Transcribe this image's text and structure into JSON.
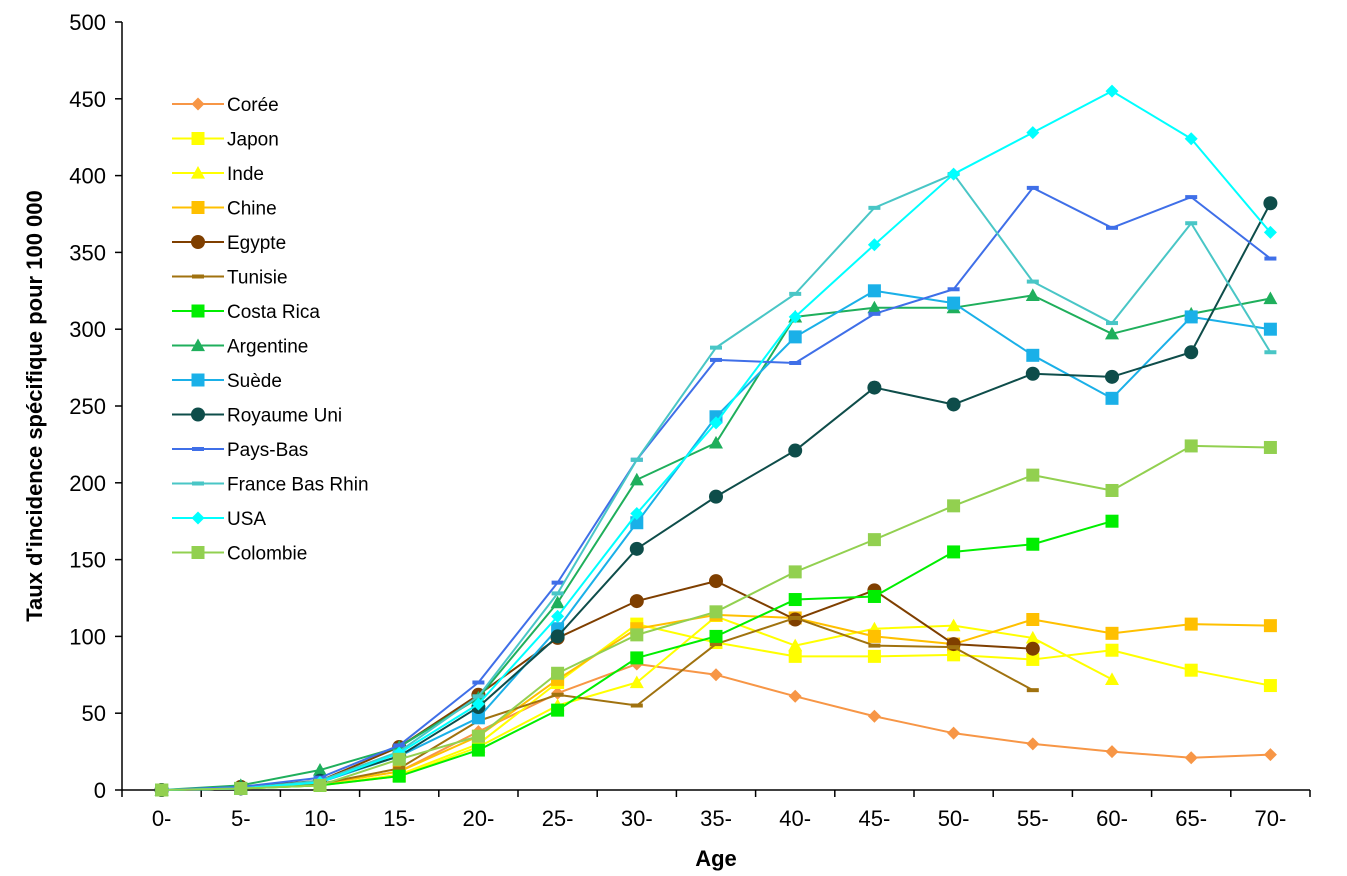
{
  "chart_data": {
    "type": "line",
    "title": "",
    "xlabel": "Age",
    "ylabel": "Taux d'incidence spécifique pour 100 000",
    "ylim": [
      0,
      500
    ],
    "yticks": [
      0,
      50,
      100,
      150,
      200,
      250,
      300,
      350,
      400,
      450,
      500
    ],
    "categories": [
      "0-",
      "5-",
      "10-",
      "15-",
      "20-",
      "25-",
      "30-",
      "35-",
      "40-",
      "45-",
      "50-",
      "55-",
      "60-",
      "65-",
      "70-"
    ],
    "legend_position": "top-left",
    "grid": false,
    "series": [
      {
        "name": "Corée",
        "color": "#F79646",
        "marker": "diamond",
        "values": [
          0,
          1,
          4,
          12,
          38,
          63,
          82,
          75,
          61,
          48,
          37,
          30,
          25,
          21,
          23
        ]
      },
      {
        "name": "Japon",
        "color": "#FFFF00",
        "marker": "square",
        "values": [
          0,
          1,
          3,
          10,
          30,
          70,
          108,
          96,
          87,
          87,
          88,
          85,
          91,
          78,
          68
        ]
      },
      {
        "name": "Inde",
        "color": "#FFFF00",
        "marker": "triangle",
        "values": [
          0,
          1,
          3,
          9,
          28,
          55,
          70,
          113,
          94,
          105,
          107,
          99,
          72,
          null,
          null
        ]
      },
      {
        "name": "Chine",
        "color": "#FFC000",
        "marker": "square",
        "values": [
          0,
          1,
          4,
          12,
          35,
          72,
          105,
          114,
          112,
          100,
          95,
          111,
          102,
          108,
          107
        ]
      },
      {
        "name": "Egypte",
        "color": "#7F3F00",
        "marker": "circle",
        "values": [
          0,
          2,
          6,
          28,
          62,
          99,
          123,
          136,
          111,
          130,
          95,
          92,
          null,
          null,
          null
        ]
      },
      {
        "name": "Tunisie",
        "color": "#A0720F",
        "marker": "dash",
        "values": [
          0,
          1,
          4,
          14,
          45,
          62,
          55,
          95,
          112,
          94,
          93,
          65,
          null,
          null,
          null
        ]
      },
      {
        "name": "Costa Rica",
        "color": "#00EE00",
        "marker": "square",
        "values": [
          0,
          1,
          3,
          9,
          26,
          52,
          86,
          100,
          124,
          126,
          155,
          160,
          175,
          null,
          null
        ]
      },
      {
        "name": "Argentine",
        "color": "#1FAF5C",
        "marker": "triangle",
        "values": [
          0,
          3,
          13,
          28,
          60,
          122,
          202,
          226,
          308,
          314,
          314,
          322,
          297,
          310,
          320
        ]
      },
      {
        "name": "Suède",
        "color": "#1AB0E8",
        "marker": "square",
        "values": [
          0,
          1,
          5,
          22,
          47,
          105,
          174,
          243,
          295,
          325,
          317,
          283,
          255,
          308,
          300
        ]
      },
      {
        "name": "Royaume Uni",
        "color": "#0E4D4A",
        "marker": "circle",
        "values": [
          0,
          1,
          6,
          22,
          54,
          100,
          157,
          191,
          221,
          262,
          251,
          271,
          269,
          285,
          382
        ]
      },
      {
        "name": "Pays-Bas",
        "color": "#3F6FE8",
        "marker": "dash",
        "values": [
          0,
          2,
          8,
          29,
          70,
          135,
          215,
          280,
          278,
          310,
          326,
          392,
          366,
          386,
          346
        ]
      },
      {
        "name": "France Bas Rhin",
        "color": "#49C6C6",
        "marker": "dash",
        "values": [
          0,
          1,
          6,
          25,
          61,
          128,
          215,
          288,
          323,
          379,
          401,
          331,
          304,
          369,
          285
        ]
      },
      {
        "name": "USA",
        "color": "#00FFFF",
        "marker": "diamond",
        "values": [
          0,
          1,
          5,
          24,
          56,
          113,
          180,
          239,
          308,
          355,
          401,
          428,
          455,
          424,
          363
        ]
      },
      {
        "name": "Colombie",
        "color": "#92D050",
        "marker": "square",
        "values": [
          0,
          1,
          3,
          20,
          35,
          76,
          101,
          116,
          142,
          163,
          185,
          205,
          195,
          224,
          223
        ]
      }
    ]
  }
}
